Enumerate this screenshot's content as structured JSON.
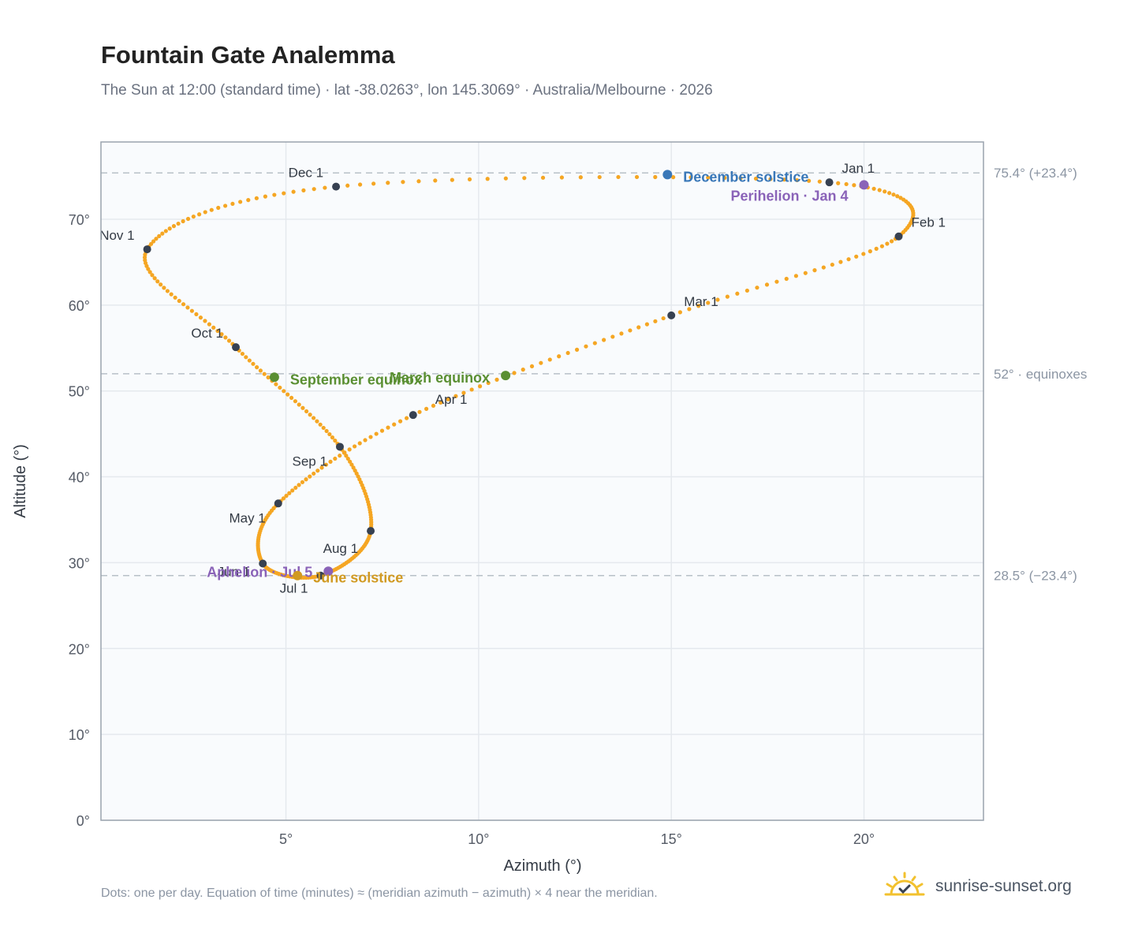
{
  "title": "Fountain Gate Analemma",
  "subtitle": "The Sun at 12:00 (standard time) · lat -38.0263°, lon 145.3069° · Australia/Melbourne · 2026",
  "footnote": "Dots: one per day. Equation of time (minutes) ≈ (meridian azimuth − azimuth) × 4 near the meridian.",
  "brand": {
    "name": "sunrise-sunset.org",
    "icon": "sun-logo-icon"
  },
  "colors": {
    "curve": "#f5a623",
    "month_dot": "#374151",
    "solstice_dec": "#3a78b8",
    "solstice_jun": "#d19a22",
    "equinox": "#5a8f32",
    "apsis": "#8a63b8",
    "grid": "#e5e9ee",
    "plot_bg": "#f9fbfd",
    "frame": "#9aa3ad",
    "ref_line": "#b8c0c8"
  },
  "chart_data": {
    "type": "scatter",
    "xlabel": "Azimuth (°)",
    "ylabel": "Altitude (°)",
    "xlim": [
      0.2,
      23.1
    ],
    "ylim": [
      0,
      79
    ],
    "xticks": [
      5,
      10,
      15,
      20
    ],
    "yticks": [
      0,
      10,
      20,
      30,
      40,
      50,
      60,
      70
    ],
    "xtick_suffix": "°",
    "ytick_suffix": "°",
    "grid": true,
    "reference_lines": [
      {
        "y": 75.4,
        "label": "75.4° (+23.4°)"
      },
      {
        "y": 52,
        "label": "52° · equinoxes"
      },
      {
        "y": 28.5,
        "label": "28.5° (−23.4°)"
      }
    ],
    "month_markers": [
      {
        "label": "Jan 1",
        "x": 19.1,
        "y": 74.3
      },
      {
        "label": "Feb 1",
        "x": 20.9,
        "y": 68.0
      },
      {
        "label": "Mar 1",
        "x": 15.0,
        "y": 58.8
      },
      {
        "label": "Apr 1",
        "x": 8.3,
        "y": 47.2
      },
      {
        "label": "May 1",
        "x": 4.8,
        "y": 36.9
      },
      {
        "label": "Jun 1",
        "x": 4.4,
        "y": 29.9
      },
      {
        "label": "Jul 1",
        "x": 5.9,
        "y": 28.5
      },
      {
        "label": "Aug 1",
        "x": 7.2,
        "y": 33.7
      },
      {
        "label": "Sep 1",
        "x": 6.4,
        "y": 43.5
      },
      {
        "label": "Oct 1",
        "x": 3.7,
        "y": 55.1
      },
      {
        "label": "Nov 1",
        "x": 1.4,
        "y": 66.5
      },
      {
        "label": "Dec 1",
        "x": 6.3,
        "y": 73.8
      }
    ],
    "events": [
      {
        "label": "December solstice",
        "x": 14.9,
        "y": 75.2,
        "color": "#3a78b8"
      },
      {
        "label": "Perihelion · Jan 4",
        "x": 20.0,
        "y": 74.0,
        "color": "#8a63b8"
      },
      {
        "label": "March equinox",
        "x": 10.7,
        "y": 51.8,
        "color": "#5a8f32"
      },
      {
        "label": "September equinox",
        "x": 4.7,
        "y": 51.6,
        "color": "#5a8f32"
      },
      {
        "label": "Aphelion · Jul 5",
        "x": 6.1,
        "y": 29.0,
        "color": "#8a63b8"
      },
      {
        "label": "June solstice",
        "x": 5.3,
        "y": 28.5,
        "color": "#d19a22"
      }
    ]
  }
}
